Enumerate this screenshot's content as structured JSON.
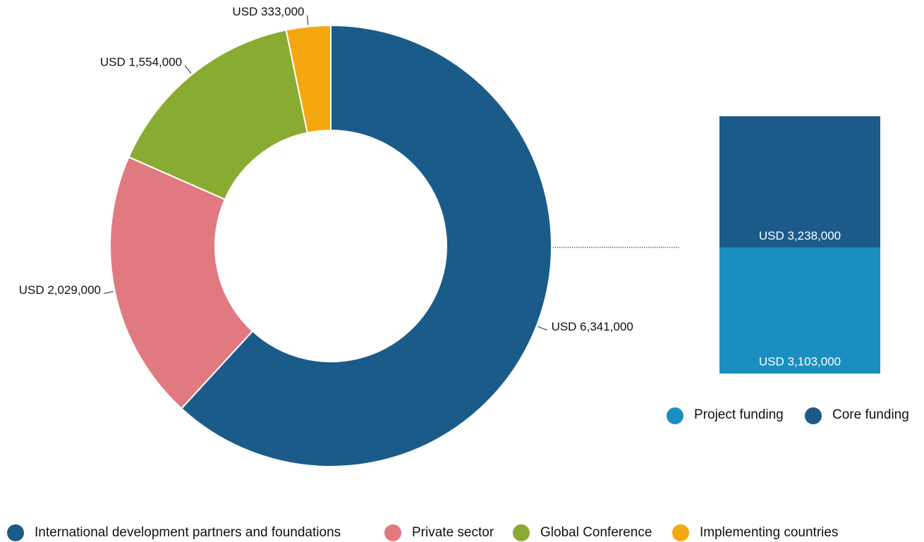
{
  "chart_data": [
    {
      "type": "donut",
      "categories": [
        "International development partners and foundations",
        "Private sector",
        "Global Conference",
        "Implementing countries"
      ],
      "values": [
        6341000,
        2029000,
        1554000,
        333000
      ],
      "value_labels": [
        "USD 6,341,000",
        "USD 2,029,000",
        "USD 1,554,000",
        "USD 333,000"
      ],
      "colors": [
        "#1a5b8a",
        "#e07a80",
        "#8aab31",
        "#f4a80e"
      ]
    },
    {
      "type": "bar",
      "categories": [
        null
      ],
      "series": [
        {
          "name": "Project funding",
          "color": "#1a8fbf",
          "values": [
            3103000
          ],
          "value_labels": [
            "USD 3,103,000"
          ]
        },
        {
          "name": "Core funding",
          "color": "#1a5b8a",
          "values": [
            3238000
          ],
          "value_labels": [
            "USD 3,238,000"
          ]
        }
      ],
      "stacked": true
    }
  ]
}
